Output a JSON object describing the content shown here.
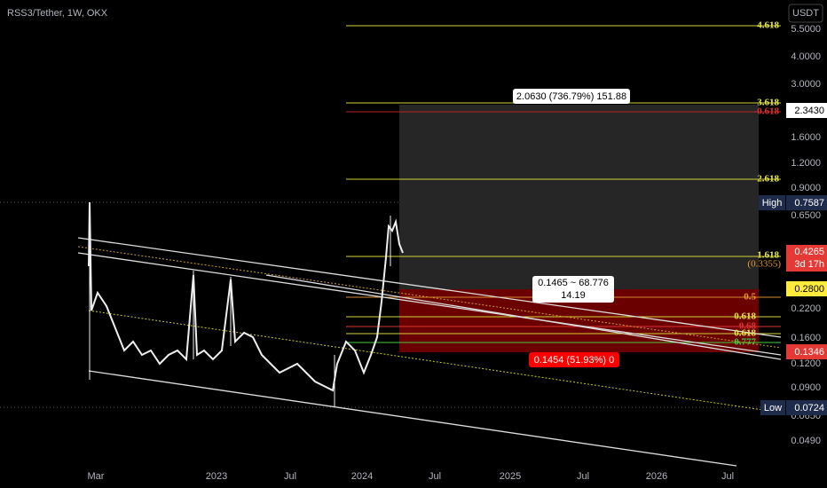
{
  "header": {
    "symbol": "RSS3/Tether, 1W, OKX",
    "currency": "USDT"
  },
  "price_axis": [
    "5.5000",
    "4.0000",
    "3.0000",
    "1.6000",
    "1.2000",
    "0.9000",
    "0.6500",
    "0.2200",
    "0.1600",
    "0.1200",
    "0.0900",
    "0.0650",
    "0.0490"
  ],
  "badges": {
    "top": "2.3430",
    "high_label": "High",
    "high": "0.7587",
    "last": "0.4265",
    "countdown": "3d 17h",
    "entry": "0.2800",
    "stop": "0.1346",
    "low_label": "Low",
    "low": "0.0724"
  },
  "time_axis": [
    "Mar",
    "2023",
    "Jul",
    "2024",
    "Jul",
    "2025",
    "Jul",
    "2026",
    "Jul"
  ],
  "fib": {
    "l4618": "4.618",
    "l3618": "3.618",
    "neg0618": "-0.618",
    "l2618": "2.618",
    "l1618": "1.618",
    "l1618_price": "(0.3355)",
    "l05": "0.5",
    "l0618": "0.618",
    "l068": "0.68",
    "l0618b": "0.618",
    "l0777": "0.777"
  },
  "position": {
    "target": "2.0630 (736.79%) 151.88",
    "entry_line1": "0.1465 ~ 68.776",
    "entry_line2": "14.19",
    "stop": "0.1454 (51.93%) 0"
  }
}
